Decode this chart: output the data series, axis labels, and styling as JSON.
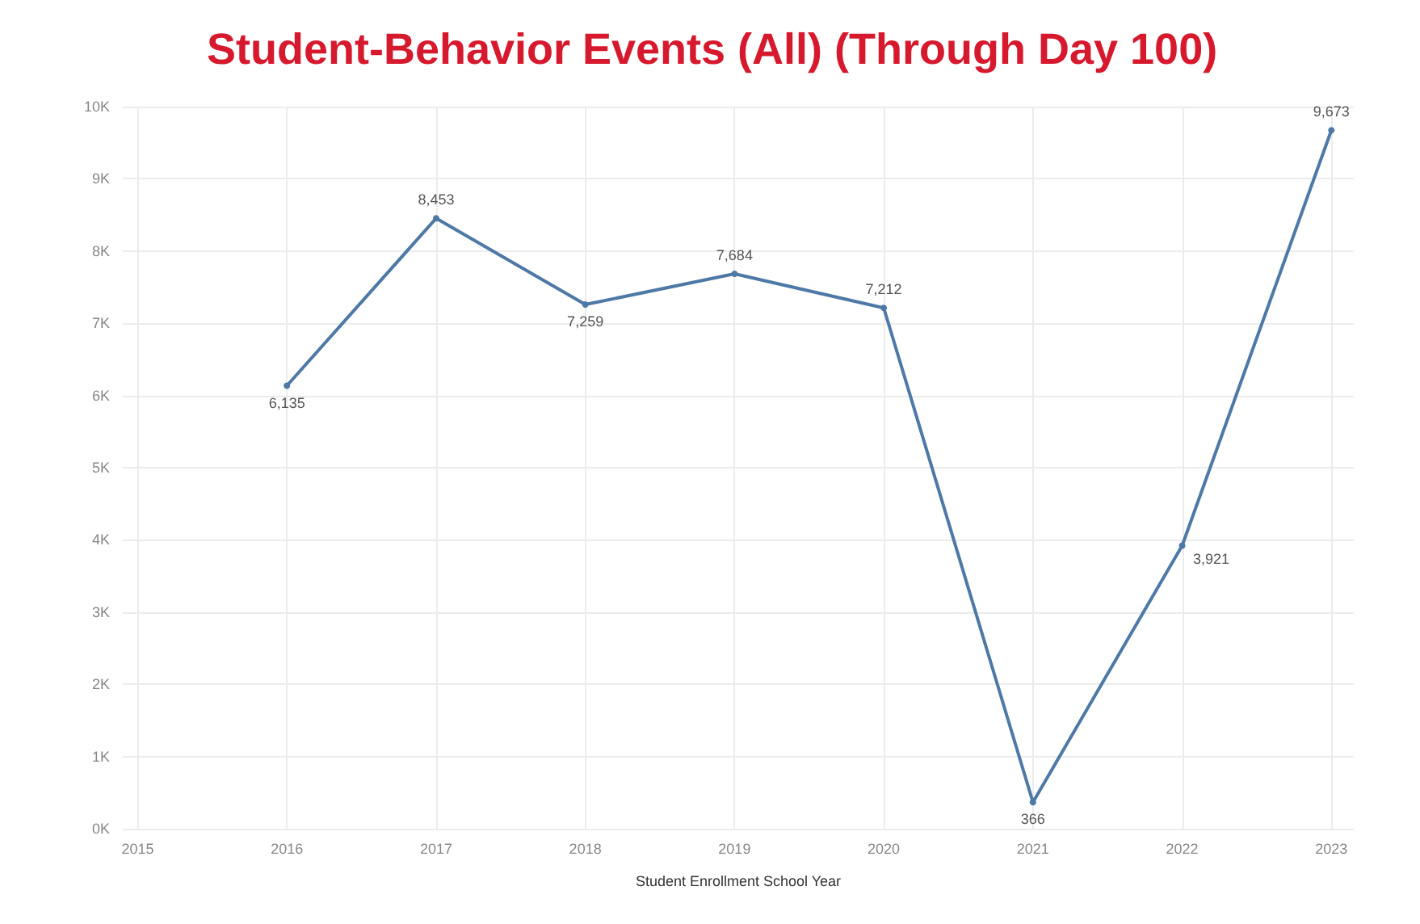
{
  "chart_data": {
    "type": "line",
    "title": "Student-Behavior Events (All) (Through Day 100)",
    "xlabel": "Student Enrollment School Year",
    "x": [
      2016,
      2017,
      2018,
      2019,
      2020,
      2021,
      2022,
      2023
    ],
    "series": [
      {
        "color": "#4e79a7",
        "values": [
          6135,
          8453,
          7259,
          7684,
          7212,
          366,
          3921,
          9673
        ],
        "value_labels": [
          "6,135",
          "8,453",
          "7,259",
          "7,684",
          "7,212",
          "366",
          "3,921",
          "9,673"
        ]
      }
    ],
    "xlim": [
      2014.9,
      2023.15
    ],
    "xticks": [
      2015,
      2016,
      2017,
      2018,
      2019,
      2020,
      2021,
      2022,
      2023
    ],
    "ylim": [
      0,
      10000
    ],
    "yticks": [
      {
        "value": 0,
        "label": "0K"
      },
      {
        "value": 1000,
        "label": "1K"
      },
      {
        "value": 2000,
        "label": "2K"
      },
      {
        "value": 3000,
        "label": "3K"
      },
      {
        "value": 4000,
        "label": "4K"
      },
      {
        "value": 5000,
        "label": "5K"
      },
      {
        "value": 6000,
        "label": "6K"
      },
      {
        "value": 7000,
        "label": "7K"
      },
      {
        "value": 8000,
        "label": "8K"
      },
      {
        "value": 9000,
        "label": "9K"
      },
      {
        "value": 10000,
        "label": "10K"
      }
    ],
    "grid": true,
    "marker": "circle",
    "line_style": "solid"
  }
}
